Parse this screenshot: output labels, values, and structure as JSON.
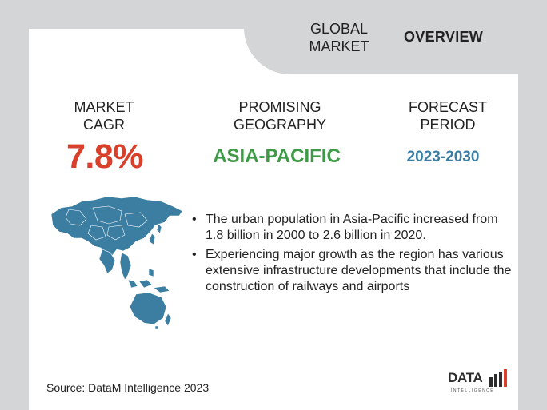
{
  "header": {
    "title_line1": "GLOBAL",
    "title_line2": "MARKET",
    "overview": "OVERVIEW"
  },
  "stats": [
    {
      "label_line1": "MARKET",
      "label_line2": "CAGR",
      "value": "7.8%",
      "color": "#d9402b"
    },
    {
      "label_line1": "PROMISING",
      "label_line2": "GEOGRAPHY",
      "value": "ASIA-PACIFIC",
      "color": "#3e9a47"
    },
    {
      "label_line1": "FORECAST",
      "label_line2": "PERIOD",
      "value": "2023-2030",
      "color": "#3b7ea1"
    }
  ],
  "bullets": [
    "The urban population in Asia-Pacific increased from 1.8 billion in 2000 to 2.6 billion in 2020.",
    "Experiencing major growth as the region has various extensive infrastructure developments that include the construction of railways and airports"
  ],
  "bullet_symbol": "•",
  "source": "Source: DataM Intelligence  2023",
  "logo": {
    "text": "DATA",
    "sub": "INTELLIGENCE"
  },
  "colors": {
    "map": "#3b7ea1",
    "page_bg": "#d4d5d7"
  },
  "icons": {
    "map": "asia-pacific-map-icon"
  }
}
